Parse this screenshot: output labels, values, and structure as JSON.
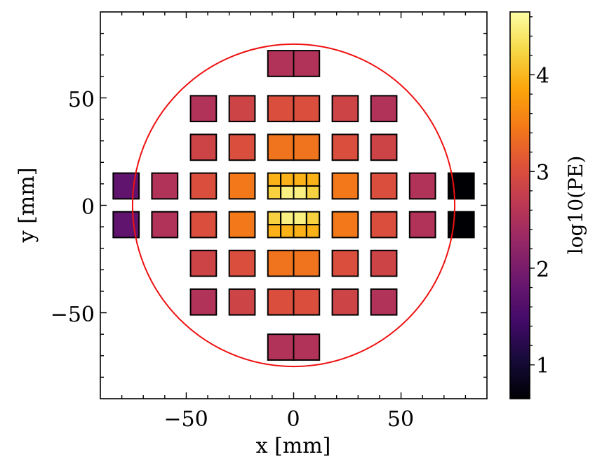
{
  "chart_data": {
    "type": "heatmap",
    "title": "",
    "xlabel": "x [mm]",
    "ylabel": "y [mm]",
    "xlim": [
      -90,
      90
    ],
    "ylim": [
      -90,
      90
    ],
    "xticks": [
      -50,
      0,
      50
    ],
    "yticks": [
      -50,
      0,
      50
    ],
    "xtick_labels": [
      "−50",
      "0",
      "50"
    ],
    "ytick_labels": [
      "−50",
      "0",
      "50"
    ],
    "colorbar": {
      "label": "log10(PE)",
      "range": [
        0.65,
        4.65
      ],
      "ticks": [
        1,
        2,
        3,
        4
      ],
      "tick_labels": [
        "1",
        "2",
        "3",
        "4"
      ],
      "colormap": "inferno"
    },
    "circle": {
      "center": [
        0,
        0
      ],
      "radius": 75,
      "color": "#ee1111"
    },
    "pixel_size_mm": 12,
    "pixels": [
      {
        "x": -6,
        "y": 66,
        "v": 2.55
      },
      {
        "x": 6,
        "y": 66,
        "v": 2.55
      },
      {
        "x": -42,
        "y": 45,
        "v": 2.55
      },
      {
        "x": -24,
        "y": 45,
        "v": 2.85
      },
      {
        "x": -6,
        "y": 45,
        "v": 3.0
      },
      {
        "x": 6,
        "y": 45,
        "v": 3.0
      },
      {
        "x": 24,
        "y": 45,
        "v": 2.85
      },
      {
        "x": 42,
        "y": 45,
        "v": 2.55
      },
      {
        "x": -42,
        "y": 27,
        "v": 2.85
      },
      {
        "x": -24,
        "y": 27,
        "v": 3.0
      },
      {
        "x": -6,
        "y": 27,
        "v": 3.4
      },
      {
        "x": 6,
        "y": 27,
        "v": 3.4
      },
      {
        "x": 24,
        "y": 27,
        "v": 3.0
      },
      {
        "x": 42,
        "y": 27,
        "v": 2.85
      },
      {
        "x": -78,
        "y": 9,
        "v": 1.75
      },
      {
        "x": -60,
        "y": 9,
        "v": 2.55
      },
      {
        "x": -42,
        "y": 9,
        "v": 3.0
      },
      {
        "x": -24,
        "y": 9,
        "v": 3.45
      },
      {
        "x": 24,
        "y": 9,
        "v": 3.45
      },
      {
        "x": 42,
        "y": 9,
        "v": 3.0
      },
      {
        "x": 60,
        "y": 9,
        "v": 2.55
      },
      {
        "x": 78,
        "y": 9,
        "v": 0.65
      },
      {
        "x": -78,
        "y": -9,
        "v": 1.75
      },
      {
        "x": -60,
        "y": -9,
        "v": 2.55
      },
      {
        "x": -42,
        "y": -9,
        "v": 3.0
      },
      {
        "x": -24,
        "y": -9,
        "v": 3.45
      },
      {
        "x": 24,
        "y": -9,
        "v": 3.45
      },
      {
        "x": 42,
        "y": -9,
        "v": 3.0
      },
      {
        "x": 60,
        "y": -9,
        "v": 2.55
      },
      {
        "x": 78,
        "y": -9,
        "v": 0.65
      },
      {
        "x": -42,
        "y": -27,
        "v": 2.85
      },
      {
        "x": -24,
        "y": -27,
        "v": 3.0
      },
      {
        "x": -6,
        "y": -27,
        "v": 3.4
      },
      {
        "x": 6,
        "y": -27,
        "v": 3.4
      },
      {
        "x": 24,
        "y": -27,
        "v": 3.0
      },
      {
        "x": 42,
        "y": -27,
        "v": 2.85
      },
      {
        "x": -42,
        "y": -45,
        "v": 2.55
      },
      {
        "x": -24,
        "y": -45,
        "v": 2.85
      },
      {
        "x": -6,
        "y": -45,
        "v": 3.0
      },
      {
        "x": 6,
        "y": -45,
        "v": 3.0
      },
      {
        "x": 24,
        "y": -45,
        "v": 2.85
      },
      {
        "x": 42,
        "y": -45,
        "v": 2.55
      },
      {
        "x": -6,
        "y": -66,
        "v": 2.55
      },
      {
        "x": 6,
        "y": -66,
        "v": 2.55
      }
    ],
    "subpixels": [
      {
        "x": -9,
        "y": 12,
        "v": 3.95
      },
      {
        "x": -3,
        "y": 12,
        "v": 3.95
      },
      {
        "x": -9,
        "y": 6,
        "v": 4.2
      },
      {
        "x": -3,
        "y": 6,
        "v": 4.5
      },
      {
        "x": 3,
        "y": 12,
        "v": 3.95
      },
      {
        "x": 9,
        "y": 12,
        "v": 3.95
      },
      {
        "x": 3,
        "y": 6,
        "v": 4.5
      },
      {
        "x": 9,
        "y": 6,
        "v": 4.2
      },
      {
        "x": -9,
        "y": -6,
        "v": 4.2
      },
      {
        "x": -3,
        "y": -6,
        "v": 4.5
      },
      {
        "x": -9,
        "y": -12,
        "v": 3.95
      },
      {
        "x": -3,
        "y": -12,
        "v": 3.95
      },
      {
        "x": 3,
        "y": -6,
        "v": 4.5
      },
      {
        "x": 9,
        "y": -6,
        "v": 4.2
      },
      {
        "x": 3,
        "y": -12,
        "v": 3.95
      },
      {
        "x": 9,
        "y": -12,
        "v": 3.95
      }
    ],
    "subpixel_size_mm": 6
  }
}
